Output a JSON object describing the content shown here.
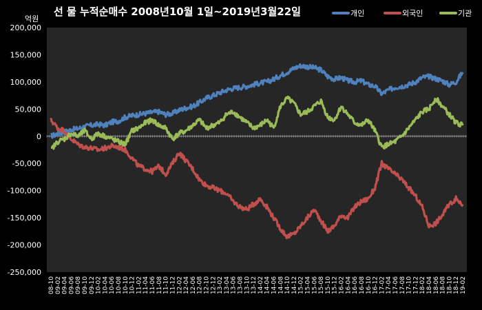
{
  "chart_data": {
    "type": "line",
    "title": "선 물 누적순매수 2008년10월 1일~2019년3월22일",
    "ylabel": "억원",
    "ylim": [
      -250000,
      200000
    ],
    "yticks": [
      "200,000",
      "150,000",
      "100,000",
      "50,000",
      "0",
      "-50,000",
      "-100,000",
      "-150,000",
      "-200,000",
      "-250,000"
    ],
    "grid": false,
    "legend": "top-right",
    "background": "#000000",
    "plot_background": "#262626",
    "categories": [
      "08-10",
      "09-02",
      "09-04",
      "09-06",
      "09-08",
      "09-10",
      "09-12",
      "10-02",
      "10-04",
      "10-06",
      "10-08",
      "10-10",
      "10-12",
      "11-02",
      "11-04",
      "11-06",
      "11-08",
      "11-10",
      "11-12",
      "12-02",
      "12-04",
      "12-06",
      "12-08",
      "12-10",
      "12-12",
      "13-02",
      "13-04",
      "13-06",
      "13-08",
      "13-10",
      "13-12",
      "14-02",
      "14-04",
      "14-06",
      "14-08",
      "14-10",
      "14-12",
      "15-02",
      "15-04",
      "15-06",
      "15-08",
      "15-10",
      "15-12",
      "16-02",
      "16-04",
      "16-06",
      "16-08",
      "16-10",
      "16-12",
      "17-02",
      "17-04",
      "17-06",
      "17-08",
      "17-10",
      "17-12",
      "18-02",
      "18-04",
      "18-06",
      "18-08",
      "18-10",
      "18-12",
      "19-02"
    ],
    "series": [
      {
        "name": "개인",
        "color": "#4f81bd",
        "values": [
          0,
          5000,
          8000,
          12000,
          14000,
          18000,
          20000,
          22000,
          20000,
          26000,
          28000,
          35000,
          38000,
          40000,
          42000,
          44000,
          45000,
          40000,
          42000,
          48000,
          52000,
          55000,
          62000,
          70000,
          75000,
          80000,
          85000,
          88000,
          90000,
          92000,
          95000,
          98000,
          100000,
          105000,
          112000,
          118000,
          125000,
          130000,
          128000,
          126000,
          122000,
          110000,
          105000,
          108000,
          102000,
          100000,
          102000,
          95000,
          92000,
          78000,
          85000,
          90000,
          92000,
          95000,
          100000,
          108000,
          110000,
          106000,
          102000,
          95000,
          100000,
          118000
        ]
      },
      {
        "name": "외국인",
        "color": "#c0504d",
        "values": [
          30000,
          15000,
          10000,
          -5000,
          -15000,
          -20000,
          -22000,
          -25000,
          -22000,
          -18000,
          -20000,
          -25000,
          -40000,
          -55000,
          -60000,
          -65000,
          -55000,
          -70000,
          -50000,
          -30000,
          -45000,
          -60000,
          -80000,
          -90000,
          -95000,
          -100000,
          -105000,
          -120000,
          -130000,
          -135000,
          -125000,
          -115000,
          -130000,
          -150000,
          -170000,
          -185000,
          -180000,
          -165000,
          -150000,
          -135000,
          -155000,
          -175000,
          -165000,
          -145000,
          -150000,
          -130000,
          -120000,
          -115000,
          -95000,
          -50000,
          -60000,
          -70000,
          -80000,
          -95000,
          -110000,
          -130000,
          -165000,
          -160000,
          -145000,
          -125000,
          -115000,
          -125000
        ]
      },
      {
        "name": "기관",
        "color": "#9bbb59",
        "values": [
          -25000,
          -10000,
          -5000,
          5000,
          0,
          10000,
          -5000,
          5000,
          0,
          -5000,
          -10000,
          -15000,
          10000,
          15000,
          25000,
          30000,
          20000,
          15000,
          -5000,
          5000,
          10000,
          20000,
          30000,
          15000,
          20000,
          25000,
          40000,
          45000,
          35000,
          25000,
          15000,
          20000,
          30000,
          15000,
          55000,
          70000,
          60000,
          40000,
          45000,
          55000,
          65000,
          35000,
          30000,
          55000,
          40000,
          25000,
          20000,
          30000,
          10000,
          -20000,
          -15000,
          -10000,
          0,
          15000,
          30000,
          45000,
          50000,
          70000,
          55000,
          40000,
          25000,
          20000
        ]
      }
    ]
  }
}
